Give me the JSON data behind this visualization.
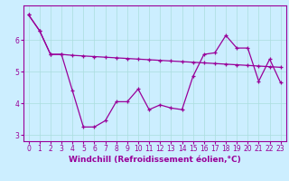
{
  "xlabel": "Windchill (Refroidissement éolien,°C)",
  "background_color": "#cceeff",
  "line_color": "#990099",
  "grid_color": "#aadddd",
  "x": [
    0,
    1,
    2,
    3,
    4,
    5,
    6,
    7,
    8,
    9,
    10,
    11,
    12,
    13,
    14,
    15,
    16,
    17,
    18,
    19,
    20,
    21,
    22,
    23
  ],
  "y_straight": [
    6.8,
    6.3,
    5.55,
    5.55,
    5.52,
    5.5,
    5.48,
    5.46,
    5.44,
    5.42,
    5.4,
    5.38,
    5.36,
    5.34,
    5.32,
    5.3,
    5.28,
    5.26,
    5.24,
    5.22,
    5.2,
    5.18,
    5.16,
    5.14
  ],
  "y_zigzag": [
    6.8,
    6.3,
    5.55,
    5.55,
    4.4,
    3.25,
    3.25,
    3.45,
    4.05,
    4.05,
    4.45,
    3.8,
    3.95,
    3.85,
    3.8,
    4.85,
    5.55,
    5.6,
    6.15,
    5.75,
    5.75,
    4.7,
    5.4,
    4.65
  ],
  "ylim_min": 2.8,
  "ylim_max": 7.1,
  "yticks": [
    3,
    4,
    5,
    6
  ],
  "xticks": [
    0,
    1,
    2,
    3,
    4,
    5,
    6,
    7,
    8,
    9,
    10,
    11,
    12,
    13,
    14,
    15,
    16,
    17,
    18,
    19,
    20,
    21,
    22,
    23
  ],
  "tick_fontsize": 5.5,
  "label_fontsize": 6.5
}
